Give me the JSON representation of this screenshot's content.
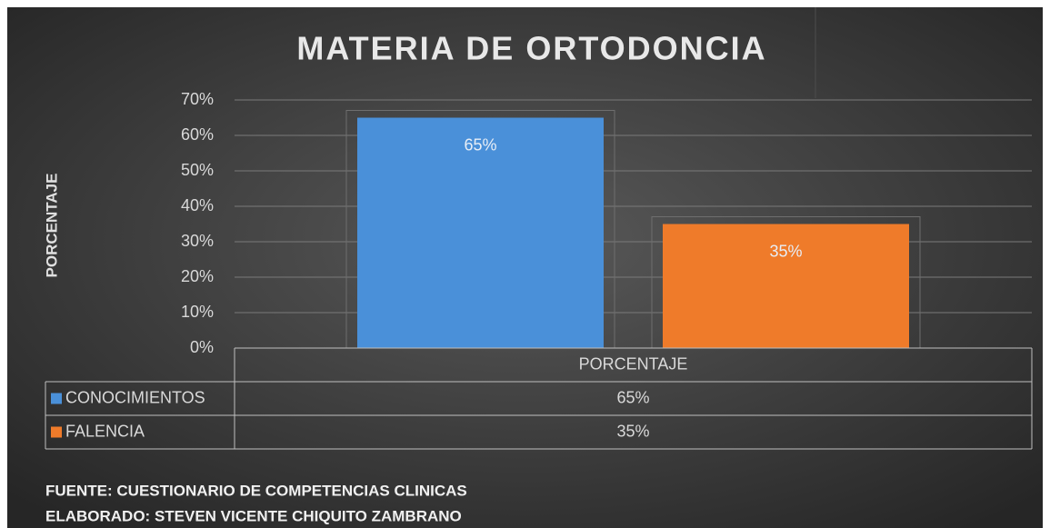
{
  "chart_data": {
    "type": "bar",
    "title": "MATERIA DE ORTODONCIA",
    "y_axis_label": "PORCENTAJE",
    "categories": [
      "PORCENTAJE"
    ],
    "series": [
      {
        "name": "CONOCIMIENTOS",
        "color": "#4a90d9",
        "values": [
          65
        ],
        "value_labels": [
          "65%"
        ]
      },
      {
        "name": "FALENCIA",
        "color": "#ef7b2a",
        "values": [
          35
        ],
        "value_labels": [
          "35%"
        ]
      }
    ],
    "ylim": [
      0,
      70
    ],
    "yticks": [
      {
        "value": 0,
        "label": "0%"
      },
      {
        "value": 10,
        "label": "10%"
      },
      {
        "value": 20,
        "label": "20%"
      },
      {
        "value": 30,
        "label": "30%"
      },
      {
        "value": 40,
        "label": "40%"
      },
      {
        "value": 50,
        "label": "50%"
      },
      {
        "value": 60,
        "label": "60%"
      },
      {
        "value": 70,
        "label": "70%"
      }
    ],
    "grid": true,
    "data_table": true,
    "footnotes": [
      "FUENTE: CUESTIONARIO DE COMPETENCIAS CLINICAS",
      "ELABORADO: STEVEN VICENTE CHIQUITO ZAMBRANO"
    ]
  }
}
